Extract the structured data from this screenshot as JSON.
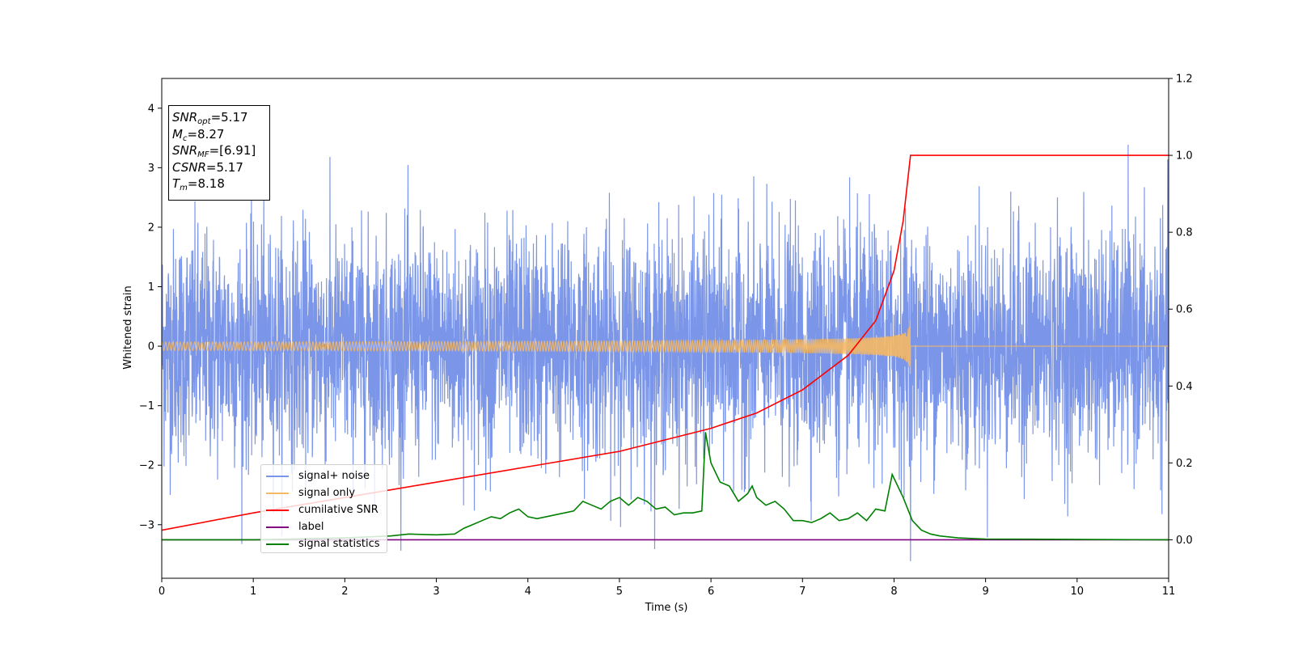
{
  "chart_data": {
    "type": "line",
    "title": "",
    "xlabel": "Time (s)",
    "ylabel": "Whitened strain",
    "xlim": [
      0,
      11
    ],
    "ylim": [
      -3.9,
      4.5
    ],
    "ylim_right": [
      -0.1,
      1.2
    ],
    "x_ticks": [
      "0",
      "1",
      "2",
      "3",
      "4",
      "5",
      "6",
      "7",
      "8",
      "9",
      "10",
      "11"
    ],
    "y_ticks": [
      "−3",
      "−2",
      "−1",
      "0",
      "1",
      "2",
      "3",
      "4"
    ],
    "y_ticks_right": [
      "0.0",
      "0.2",
      "0.4",
      "0.6",
      "0.8",
      "1.0",
      "1.2"
    ],
    "grid": false,
    "legend_placement": "lower-left",
    "annotation": {
      "snr_opt": {
        "sym": "SNR",
        "sub": "opt",
        "value": "=5.17"
      },
      "mc": {
        "sym": "M",
        "sub": "c",
        "value": "=8.27"
      },
      "snr_mf": {
        "sym": "SNR",
        "sub": "MF",
        "value": "=[6.91]"
      },
      "csnr": {
        "sym": "CSNR",
        "value": "=5.17"
      },
      "tm": {
        "sym": "T",
        "sub": "m",
        "value": "=8.18"
      }
    },
    "series": [
      {
        "name": "signal+ noise",
        "color": "#7b96e8",
        "axis": "left",
        "description_values": {
          "noise_std": 0.95,
          "t_range": [
            0,
            11
          ]
        }
      },
      {
        "name": "signal only",
        "color": "#f5b864",
        "axis": "left",
        "merger_time": 8.18,
        "peak_amplitude": 0.5
      },
      {
        "name": "cumilative SNR",
        "color": "#ff0000",
        "axis": "right",
        "x": [
          0,
          1,
          2,
          3,
          4,
          5,
          6,
          6.5,
          7,
          7.5,
          7.8,
          8.0,
          8.1,
          8.18,
          11
        ],
        "y": [
          0.025,
          0.07,
          0.11,
          0.15,
          0.19,
          0.23,
          0.29,
          0.33,
          0.39,
          0.48,
          0.57,
          0.7,
          0.83,
          1.0,
          1.0
        ]
      },
      {
        "name": "label",
        "color": "#800080",
        "axis": "right",
        "x": [
          0,
          11
        ],
        "y": [
          0.0,
          0.0
        ]
      },
      {
        "name": "signal statistics",
        "color": "#008000",
        "axis": "right",
        "x": [
          0,
          1,
          2,
          2.5,
          2.7,
          3.0,
          3.2,
          3.3,
          3.4,
          3.5,
          3.6,
          3.7,
          3.8,
          3.9,
          4.0,
          4.1,
          4.2,
          4.3,
          4.4,
          4.5,
          4.6,
          4.7,
          4.8,
          4.9,
          5.0,
          5.1,
          5.2,
          5.3,
          5.4,
          5.5,
          5.6,
          5.7,
          5.8,
          5.9,
          5.94,
          6.0,
          6.1,
          6.2,
          6.3,
          6.4,
          6.45,
          6.5,
          6.6,
          6.7,
          6.8,
          6.9,
          7.0,
          7.1,
          7.2,
          7.3,
          7.4,
          7.5,
          7.6,
          7.7,
          7.8,
          7.9,
          7.98,
          8.0,
          8.1,
          8.2,
          8.3,
          8.4,
          8.5,
          8.7,
          9.0,
          11
        ],
        "y": [
          0.0,
          0.0,
          0.005,
          0.01,
          0.015,
          0.013,
          0.015,
          0.03,
          0.04,
          0.05,
          0.06,
          0.055,
          0.07,
          0.08,
          0.06,
          0.055,
          0.06,
          0.065,
          0.07,
          0.075,
          0.1,
          0.09,
          0.08,
          0.1,
          0.11,
          0.09,
          0.11,
          0.1,
          0.08,
          0.085,
          0.065,
          0.07,
          0.07,
          0.075,
          0.28,
          0.2,
          0.15,
          0.14,
          0.1,
          0.12,
          0.14,
          0.11,
          0.09,
          0.1,
          0.08,
          0.05,
          0.05,
          0.045,
          0.055,
          0.07,
          0.05,
          0.055,
          0.07,
          0.05,
          0.08,
          0.075,
          0.17,
          0.16,
          0.11,
          0.05,
          0.025,
          0.015,
          0.01,
          0.005,
          0.002,
          0.0
        ]
      }
    ]
  }
}
